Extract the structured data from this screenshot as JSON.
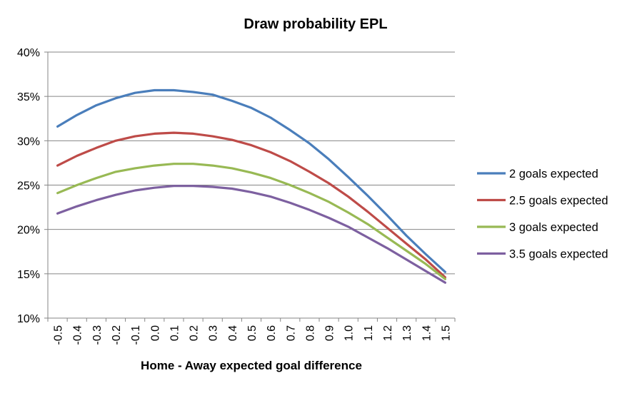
{
  "chart_data": {
    "type": "line",
    "title": "Draw probability EPL",
    "xlabel": "Home - Away expected goal difference",
    "ylabel": "",
    "x": [
      -0.5,
      -0.4,
      -0.3,
      -0.2,
      -0.1,
      0.0,
      0.1,
      0.2,
      0.3,
      0.4,
      0.5,
      0.6,
      0.7,
      0.8,
      0.9,
      1.0,
      1.1,
      1.2,
      1.3,
      1.4,
      1.5
    ],
    "x_tick_labels": [
      "-0.5",
      "-0.4",
      "-0.3",
      "-0.2",
      "-0.1",
      "0.0",
      "0.1",
      "0.2",
      "0.3",
      "0.4",
      "0.5",
      "0.6",
      "0.7",
      "0.8",
      "0.9",
      "1.0",
      "1.1",
      "1.2",
      "1.3",
      "1.4",
      "1.5"
    ],
    "ylim": [
      0.1,
      0.4
    ],
    "y_ticks": [
      0.1,
      0.15,
      0.2,
      0.25,
      0.3,
      0.35,
      0.4
    ],
    "y_tick_labels": [
      "10%",
      "15%",
      "20%",
      "25%",
      "30%",
      "35%",
      "40%"
    ],
    "grid": "horizontal",
    "legend_position": "right",
    "series": [
      {
        "name": "2 goals expected",
        "color": "#4a7ebb",
        "values": [
          0.316,
          0.329,
          0.34,
          0.348,
          0.354,
          0.357,
          0.357,
          0.355,
          0.352,
          0.345,
          0.337,
          0.326,
          0.312,
          0.297,
          0.279,
          0.259,
          0.238,
          0.216,
          0.193,
          0.172,
          0.152
        ]
      },
      {
        "name": "2.5 goals expected",
        "color": "#be4b48",
        "values": [
          0.272,
          0.283,
          0.292,
          0.3,
          0.305,
          0.308,
          0.309,
          0.308,
          0.305,
          0.301,
          0.295,
          0.287,
          0.277,
          0.265,
          0.252,
          0.237,
          0.22,
          0.202,
          0.184,
          0.166,
          0.146
        ]
      },
      {
        "name": "3 goals expected",
        "color": "#98b954",
        "values": [
          0.241,
          0.25,
          0.258,
          0.265,
          0.269,
          0.272,
          0.274,
          0.274,
          0.272,
          0.269,
          0.264,
          0.258,
          0.25,
          0.241,
          0.231,
          0.219,
          0.206,
          0.191,
          0.176,
          0.161,
          0.144
        ]
      },
      {
        "name": "3.5 goals expected",
        "color": "#7d60a0",
        "values": [
          0.218,
          0.226,
          0.233,
          0.239,
          0.244,
          0.247,
          0.249,
          0.249,
          0.248,
          0.246,
          0.242,
          0.237,
          0.23,
          0.222,
          0.213,
          0.203,
          0.191,
          0.179,
          0.166,
          0.153,
          0.14
        ]
      }
    ]
  }
}
